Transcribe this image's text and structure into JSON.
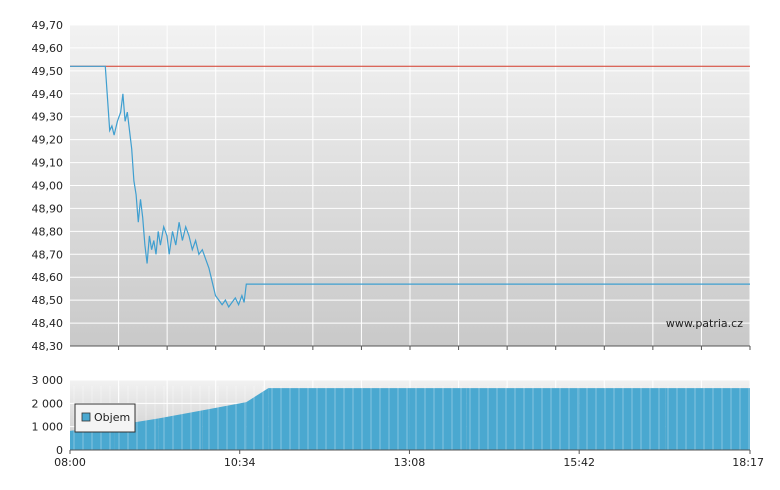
{
  "chart_data": [
    {
      "type": "line",
      "panel": "price",
      "x_axis": "time",
      "ylim": [
        48.3,
        49.7
      ],
      "y_ticks": [
        "48,30",
        "48,40",
        "48,50",
        "48,60",
        "48,70",
        "48,80",
        "48,90",
        "49,00",
        "49,10",
        "49,20",
        "49,30",
        "49,40",
        "49,50",
        "49,60",
        "49,70"
      ],
      "grid": true,
      "reference_line": {
        "value": 49.52,
        "color": "#d33a2a"
      },
      "watermark": "www.patria.cz",
      "series": [
        {
          "color": "#3f9fd0",
          "points": [
            [
              "08:00",
              49.52
            ],
            [
              "08:32",
              49.52
            ],
            [
              "08:34",
              49.38
            ],
            [
              "08:36",
              49.24
            ],
            [
              "08:38",
              49.26
            ],
            [
              "08:40",
              49.22
            ],
            [
              "08:43",
              49.28
            ],
            [
              "08:46",
              49.32
            ],
            [
              "08:48",
              49.4
            ],
            [
              "08:50",
              49.28
            ],
            [
              "08:52",
              49.32
            ],
            [
              "08:54",
              49.24
            ],
            [
              "08:56",
              49.16
            ],
            [
              "08:58",
              49.02
            ],
            [
              "09:00",
              48.96
            ],
            [
              "09:02",
              48.84
            ],
            [
              "09:04",
              48.94
            ],
            [
              "09:06",
              48.86
            ],
            [
              "09:08",
              48.74
            ],
            [
              "09:10",
              48.66
            ],
            [
              "09:12",
              48.78
            ],
            [
              "09:14",
              48.72
            ],
            [
              "09:16",
              48.76
            ],
            [
              "09:18",
              48.7
            ],
            [
              "09:20",
              48.8
            ],
            [
              "09:22",
              48.74
            ],
            [
              "09:25",
              48.82
            ],
            [
              "09:28",
              48.78
            ],
            [
              "09:30",
              48.7
            ],
            [
              "09:33",
              48.8
            ],
            [
              "09:36",
              48.74
            ],
            [
              "09:39",
              48.84
            ],
            [
              "09:42",
              48.76
            ],
            [
              "09:45",
              48.82
            ],
            [
              "09:48",
              48.78
            ],
            [
              "09:51",
              48.72
            ],
            [
              "09:54",
              48.76
            ],
            [
              "09:57",
              48.7
            ],
            [
              "10:00",
              48.72
            ],
            [
              "10:03",
              48.68
            ],
            [
              "10:06",
              48.64
            ],
            [
              "10:09",
              48.58
            ],
            [
              "10:12",
              48.52
            ],
            [
              "10:15",
              48.5
            ],
            [
              "10:18",
              48.48
            ],
            [
              "10:21",
              48.5
            ],
            [
              "10:24",
              48.47
            ],
            [
              "10:27",
              48.49
            ],
            [
              "10:30",
              48.51
            ],
            [
              "10:33",
              48.48
            ],
            [
              "10:36",
              48.52
            ],
            [
              "10:38",
              48.49
            ],
            [
              "10:40",
              48.57
            ],
            [
              "12:00",
              48.57
            ],
            [
              "14:00",
              48.57
            ],
            [
              "16:00",
              48.57
            ],
            [
              "18:17",
              48.57
            ]
          ]
        }
      ]
    },
    {
      "type": "bar",
      "panel": "volume",
      "x_axis": "time",
      "ylim": [
        0,
        3000
      ],
      "y_ticks": [
        "0",
        "1 000",
        "2 000",
        "3 000"
      ],
      "x_ticks": [
        "08:00",
        "10:34",
        "13:08",
        "15:42",
        "18:17"
      ],
      "legend": {
        "label": "Objem",
        "position": "top-left",
        "color": "#4aa8d0"
      },
      "series": [
        {
          "name": "Objem",
          "color": "#4aa8d0",
          "points": [
            [
              "08:00",
              820
            ],
            [
              "08:40",
              1050
            ],
            [
              "09:20",
              1350
            ],
            [
              "10:00",
              1700
            ],
            [
              "10:40",
              2050
            ],
            [
              "11:00",
              2650
            ],
            [
              "12:00",
              2650
            ],
            [
              "13:08",
              2650
            ],
            [
              "14:00",
              2650
            ],
            [
              "15:42",
              2650
            ],
            [
              "17:00",
              2650
            ],
            [
              "18:17",
              2650
            ]
          ]
        }
      ]
    }
  ]
}
